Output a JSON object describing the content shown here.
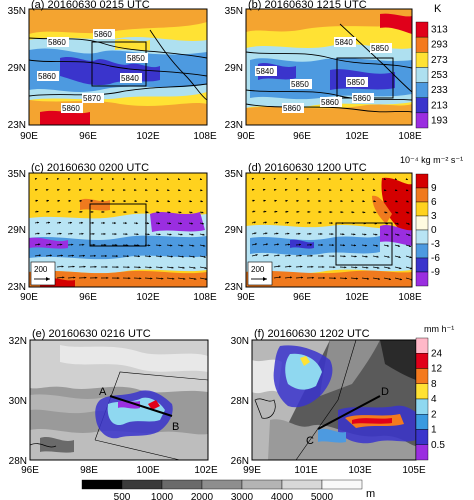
{
  "panels": [
    {
      "id": "a",
      "title": "(a) 20160630 0215 UTC",
      "x_ticks": [
        "90E",
        "96E",
        "102E",
        "108E"
      ],
      "y_ticks": [
        "23N",
        "29N",
        "35N"
      ]
    },
    {
      "id": "b",
      "title": "(b) 20160630 1215 UTC",
      "x_ticks": [
        "90E",
        "96E",
        "102E",
        "108E"
      ],
      "y_ticks": [
        "23N",
        "29N",
        "35N"
      ]
    },
    {
      "id": "c",
      "title": "(c) 20160630 0200 UTC",
      "x_ticks": [
        "90E",
        "96E",
        "102E",
        "108E"
      ],
      "y_ticks": [
        "23N",
        "29N",
        "35N"
      ]
    },
    {
      "id": "d",
      "title": "(d) 20160630 1200 UTC",
      "x_ticks": [
        "90E",
        "96E",
        "102E",
        "108E"
      ],
      "y_ticks": [
        "23N",
        "29N",
        "35N"
      ]
    },
    {
      "id": "e",
      "title": "(e) 20160630 0216 UTC",
      "x_ticks": [
        "96E",
        "98E",
        "100E",
        "102E"
      ],
      "y_ticks": [
        "28N",
        "30N",
        "32N"
      ]
    },
    {
      "id": "f",
      "title": "(f) 20160630 1202 UTC",
      "x_ticks": [
        "99E",
        "101E",
        "103E",
        "105E"
      ],
      "y_ticks": [
        "26N",
        "28N",
        "30N"
      ]
    }
  ],
  "contour_labels": {
    "a": [
      "5860",
      "5860",
      "5850",
      "5860",
      "5840",
      "5870",
      "5860"
    ],
    "b": [
      "5840",
      "5850",
      "5840",
      "5850",
      "5850",
      "5860",
      "5860",
      "5860"
    ]
  },
  "colorbars": {
    "temperature": {
      "unit": "K",
      "ticks": [
        "313",
        "293",
        "273",
        "253",
        "233",
        "213",
        "193"
      ],
      "colors": [
        "#e0001a",
        "#f47a1e",
        "#ffe234",
        "#aee0f0",
        "#4d9ae0",
        "#3a34cc",
        "#9a2ee0"
      ]
    },
    "flux": {
      "unit": "10⁻⁴ kg m⁻² s⁻¹",
      "ticks": [
        "9",
        "6",
        "3",
        "0",
        "-3",
        "-6",
        "-9"
      ],
      "colors": [
        "#d40000",
        "#f07a1e",
        "#ffd21e",
        "#fffbe0",
        "#b8e4f4",
        "#4d9ae0",
        "#3a34cc",
        "#9a2ee0"
      ]
    },
    "rain": {
      "unit": "mm h⁻¹",
      "ticks": [
        "24",
        "12",
        "8",
        "4",
        "2",
        "1",
        "0.5"
      ],
      "colors": [
        "#ffb8c8",
        "#e0001a",
        "#f47a1e",
        "#ffe234",
        "#8fd8f0",
        "#3a9ae0",
        "#3a34cc",
        "#9a2ee0"
      ]
    },
    "terrain": {
      "unit": "m",
      "ticks": [
        "500",
        "1000",
        "2000",
        "3000",
        "4000",
        "5000"
      ],
      "colors": [
        "#000000",
        "#3a3a3a",
        "#6a6a6a",
        "#8e8e8e",
        "#b4b4b4",
        "#d8d8d8",
        "#f8f8f8"
      ]
    }
  },
  "vector_ref": "200",
  "cross_section": {
    "e": [
      "A",
      "B"
    ],
    "f": [
      "C",
      "D"
    ]
  }
}
